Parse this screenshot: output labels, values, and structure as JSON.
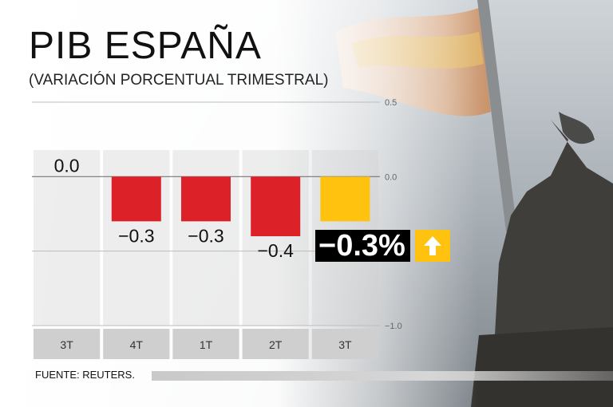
{
  "header": {
    "title": "PIB ESPAÑA",
    "subtitle": "(VARIACIÓN PORCENTUAL TRIMESTRAL)"
  },
  "callout": {
    "value": "−0.3%",
    "arrow_icon": "up-arrow-icon",
    "colors": {
      "value_bg": "#000000",
      "arrow_bg": "#ffc20e"
    }
  },
  "source": "FUENTE: REUTERS.",
  "chart_data": {
    "type": "bar",
    "categories": [
      "3T",
      "4T",
      "1T",
      "2T",
      "3T"
    ],
    "values": [
      0.0,
      -0.3,
      -0.3,
      -0.4,
      -0.3
    ],
    "value_labels": [
      "0.0",
      "−0.3",
      "−0.3",
      "−0.4",
      ""
    ],
    "y_ticks": [
      0.5,
      0.0,
      -1.0
    ],
    "y_tick_labels": [
      "0.5",
      "0.0",
      "−1.0"
    ],
    "ylim": [
      -1.0,
      0.5
    ],
    "grid": true,
    "colors": [
      "#dd2129",
      "#dd2129",
      "#dd2129",
      "#dd2129",
      "#ffc20e"
    ]
  }
}
